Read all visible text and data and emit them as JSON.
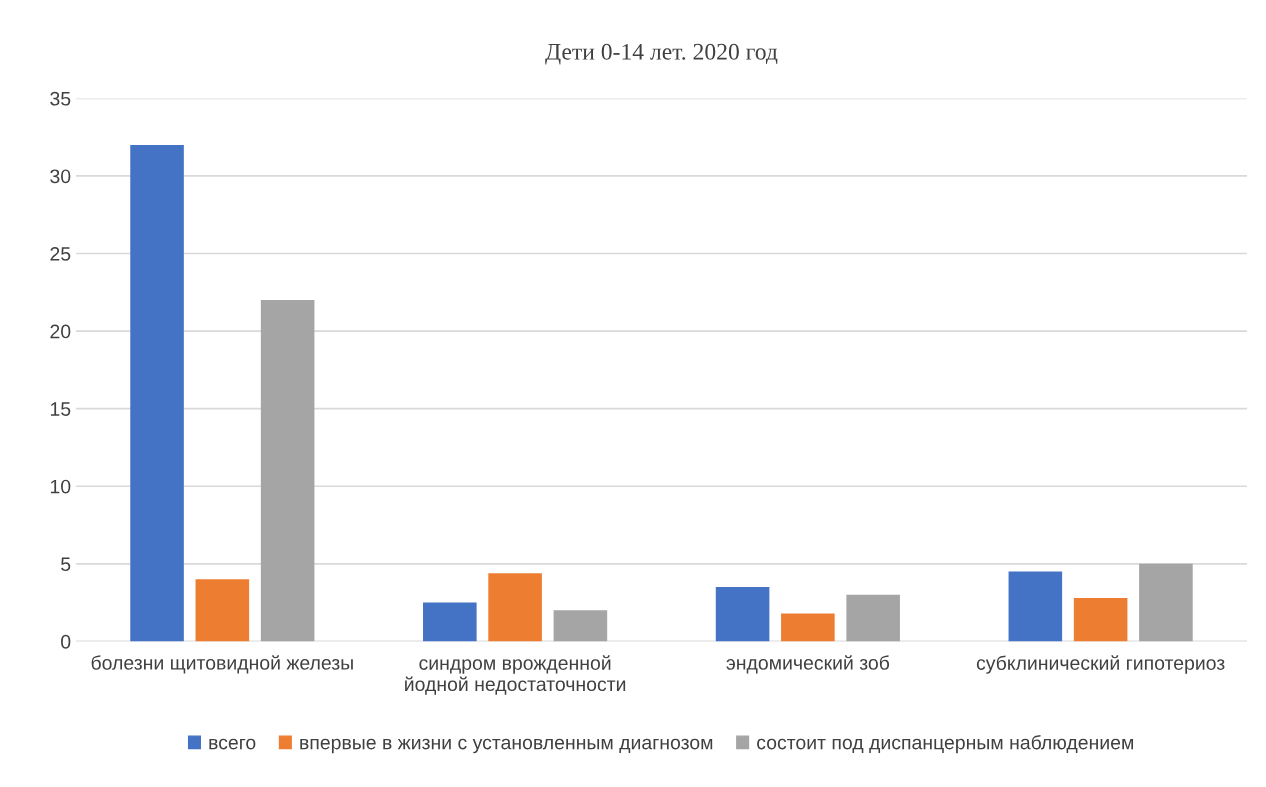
{
  "chart_data": {
    "type": "bar",
    "title": "Дети 0-14 лет. 2020 год",
    "categories": [
      "болезни щитовидной железы",
      "синдром врожденной йодной недостаточности",
      "эндомический зоб",
      "субклинический гипотериоз"
    ],
    "series": [
      {
        "name": "всего",
        "color": "#4472c4",
        "values": [
          32,
          2.5,
          3.5,
          4.5
        ]
      },
      {
        "name": "впервые в жизни с установленным диагнозом",
        "color": "#ed7d31",
        "values": [
          4,
          4.4,
          1.8,
          2.8
        ]
      },
      {
        "name": "состоит под диспанцерным наблюдением",
        "color": "#a5a5a5",
        "values": [
          22,
          2.0,
          3.0,
          5.0
        ]
      }
    ],
    "ylim": [
      0,
      35
    ],
    "yticks": [
      0,
      5,
      10,
      15,
      20,
      25,
      30,
      35
    ],
    "grid": "y",
    "legend": "bottom"
  }
}
